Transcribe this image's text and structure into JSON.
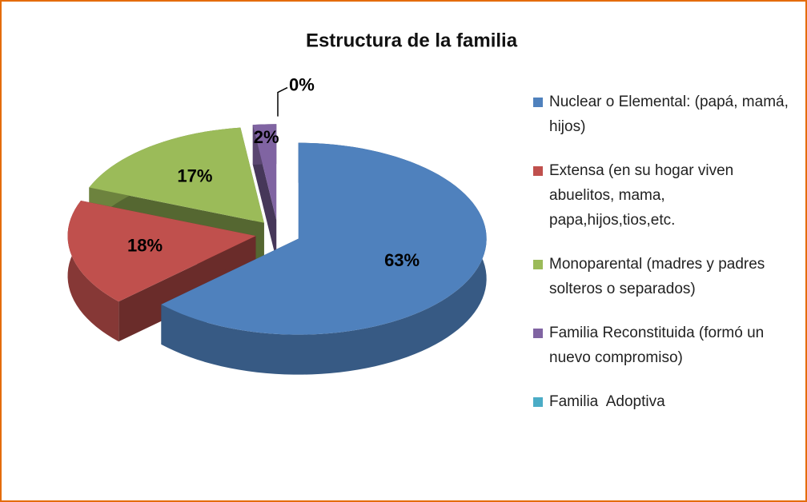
{
  "chart_data": {
    "type": "pie3d",
    "title": "Estructura de la familia",
    "categories": [
      "Nuclear o Elemental: (papá, mamá, hijos)",
      "Extensa (en su hogar viven abuelitos, mama, papa,hijos,tios,etc.",
      "Monoparental (madres y padres solteros o separados)",
      "Familia Reconstituida (formó un nuevo compromiso)",
      "Familia  Adoptiva"
    ],
    "values": [
      63,
      18,
      17,
      2,
      0
    ],
    "value_labels": [
      "63%",
      "18%",
      "17%",
      "2%",
      "0%"
    ],
    "colors": [
      "#4f81bd",
      "#c0504d",
      "#9bbb59",
      "#8064a2",
      "#4bacc6"
    ],
    "legend": "right"
  }
}
